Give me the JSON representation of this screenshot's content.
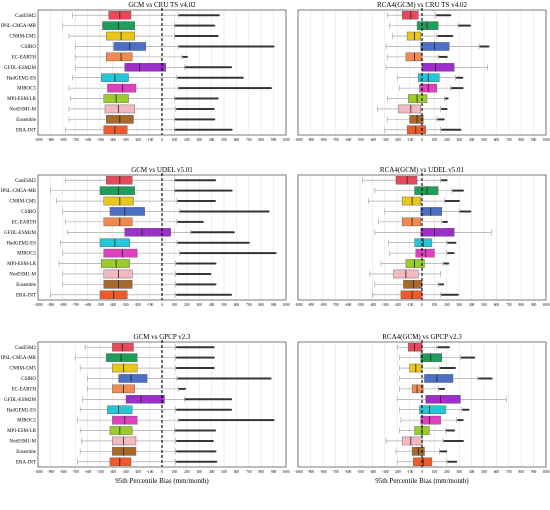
{
  "figure": {
    "xlabel": "95th Percentile Bias (mm/month)",
    "colors": {
      "CanESM2": "#e8495a",
      "IPSL-CM5A-MR": "#1f9e5a",
      "CNRM-CM5": "#e8c81c",
      "CSIRO": "#4a6fc4",
      "EC-EARTH": "#f08a50",
      "GFDL-ESM2M": "#9b2fc8",
      "HadGEM2-ES": "#22c8d8",
      "MIROC5": "#e040c0",
      "MPI-ESM-LR": "#9ccc2c",
      "NorESM1-M": "#f4b8c0",
      "Ensemble": "#a86a2c",
      "ERA-INT": "#f05a2a"
    },
    "whisker_color": "#999999",
    "outlier_color": "#333333",
    "zero_line_style": "dashed"
  },
  "chart_data": [
    {
      "type": "boxplot",
      "title": "GCM vs CRU TS v4.02",
      "categories": [
        "CanESM2",
        "IPSL-CM5A-MR",
        "CNRM-CM5",
        "CSIRO",
        "EC-EARTH",
        "GFDL-ESM2M",
        "HadGEM2-ES",
        "MIROC5",
        "MPI-ESM-LR",
        "NorESM1-M",
        "Ensemble",
        "ERA-INT"
      ],
      "xlim": [
        -1000,
        1000
      ],
      "xticks": [
        -1000,
        -900,
        -800,
        -700,
        -600,
        -500,
        -400,
        -300,
        -200,
        -100,
        0,
        100,
        200,
        300,
        400,
        500,
        600,
        700,
        800,
        900,
        1000
      ],
      "boxes": [
        {
          "q1": -430,
          "median": -340,
          "q3": -250,
          "wlo": -720,
          "whi": 130,
          "outlier_hi": 460
        },
        {
          "q1": -480,
          "median": -350,
          "q3": -220,
          "wlo": -800,
          "whi": 100,
          "outlier_hi": 420
        },
        {
          "q1": -450,
          "median": -330,
          "q3": -220,
          "wlo": -750,
          "whi": 100,
          "outlier_hi": 450
        },
        {
          "q1": -390,
          "median": -260,
          "q3": -130,
          "wlo": -700,
          "whi": 130,
          "outlier_hi": 900
        },
        {
          "q1": -450,
          "median": -330,
          "q3": -240,
          "wlo": -700,
          "whi": 160,
          "outlier_hi": 200
        },
        {
          "q1": -300,
          "median": -180,
          "q3": 30,
          "wlo": -700,
          "whi": 180,
          "outlier_hi": 560
        },
        {
          "q1": -490,
          "median": -380,
          "q3": -270,
          "wlo": -720,
          "whi": 120,
          "outlier_hi": 650
        },
        {
          "q1": -440,
          "median": -320,
          "q3": -210,
          "wlo": -750,
          "whi": 130,
          "outlier_hi": 880
        },
        {
          "q1": -470,
          "median": -370,
          "q3": -270,
          "wlo": -740,
          "whi": 100,
          "outlier_hi": 450
        },
        {
          "q1": -460,
          "median": -350,
          "q3": -220,
          "wlo": -750,
          "whi": 110,
          "outlier_hi": 420
        },
        {
          "q1": -450,
          "median": -340,
          "q3": -230,
          "wlo": -750,
          "whi": 100,
          "outlier_hi": 420
        },
        {
          "q1": -470,
          "median": -380,
          "q3": -280,
          "wlo": -780,
          "whi": 100,
          "outlier_hi": 560
        }
      ]
    },
    {
      "type": "boxplot",
      "title": "RCA4(GCM) vs CRU TS v4.02",
      "categories": [
        "CanESM2",
        "IPSL-CM5A-MR",
        "CNRM-CM5",
        "CSIRO",
        "EC-EARTH",
        "GFDL-ESM2M",
        "HadGEM2-ES",
        "MIROC5",
        "MPI-ESM-LR",
        "NorESM1-M",
        "Ensemble",
        "ERA-INT"
      ],
      "xlim": [
        -1000,
        1000
      ],
      "xticks": [
        -1000,
        -900,
        -800,
        -700,
        -600,
        -500,
        -400,
        -300,
        -200,
        -100,
        0,
        100,
        200,
        300,
        400,
        500,
        600,
        700,
        800,
        900,
        1000
      ],
      "boxes": [
        {
          "q1": -160,
          "median": -90,
          "q3": -30,
          "wlo": -280,
          "whi": 110,
          "outlier_hi": 230
        },
        {
          "q1": -40,
          "median": 40,
          "q3": 130,
          "wlo": -260,
          "whi": 290,
          "outlier_hi": 390
        },
        {
          "q1": -120,
          "median": -60,
          "q3": -10,
          "wlo": -240,
          "whi": 120,
          "outlier_hi": 250
        },
        {
          "q1": -10,
          "median": 100,
          "q3": 220,
          "wlo": -290,
          "whi": 460,
          "outlier_hi": 540
        },
        {
          "q1": -130,
          "median": -60,
          "q3": 0,
          "wlo": -280,
          "whi": 130,
          "outlier_hi": 200
        },
        {
          "q1": 0,
          "median": 110,
          "q3": 260,
          "wlo": -290,
          "whi": 530,
          "outlier_hi": 0
        },
        {
          "q1": -30,
          "median": 50,
          "q3": 140,
          "wlo": -200,
          "whi": 270,
          "outlier_hi": 330
        },
        {
          "q1": -20,
          "median": 50,
          "q3": 120,
          "wlo": -180,
          "whi": 230,
          "outlier_hi": 330
        },
        {
          "q1": -110,
          "median": -40,
          "q3": 40,
          "wlo": -280,
          "whi": 180,
          "outlier_hi": 210
        },
        {
          "q1": -190,
          "median": -90,
          "q3": -10,
          "wlo": -360,
          "whi": 150,
          "outlier_hi": 200
        },
        {
          "q1": -100,
          "median": -40,
          "q3": 10,
          "wlo": -280,
          "whi": 120,
          "outlier_hi": 180
        },
        {
          "q1": -120,
          "median": -50,
          "q3": 30,
          "wlo": -300,
          "whi": 150,
          "outlier_hi": 310
        }
      ]
    },
    {
      "type": "boxplot",
      "title": "GCM vs UDEL v5.01",
      "categories": [
        "CanESM2",
        "IPSL-CM5A-MR",
        "CNRM-CM5",
        "CSIRO",
        "EC-EARTH",
        "GFDL-ESM2M",
        "HadGEM2-ES",
        "MIROC5",
        "MPI-ESM-LR",
        "NorESM1-M",
        "Ensemble",
        "ERA-INT"
      ],
      "xlim": [
        -1000,
        1000
      ],
      "xticks": [
        -1000,
        -900,
        -800,
        -700,
        -600,
        -500,
        -400,
        -300,
        -200,
        -100,
        0,
        100,
        200,
        300,
        400,
        500,
        600,
        700,
        800,
        900,
        1000
      ],
      "boxes": [
        {
          "q1": -450,
          "median": -340,
          "q3": -240,
          "wlo": -780,
          "whi": 100,
          "outlier_hi": 430
        },
        {
          "q1": -500,
          "median": -350,
          "q3": -220,
          "wlo": -900,
          "whi": 100,
          "outlier_hi": 560
        },
        {
          "q1": -470,
          "median": -340,
          "q3": -230,
          "wlo": -850,
          "whi": 120,
          "outlier_hi": 430
        },
        {
          "q1": -420,
          "median": -300,
          "q3": -140,
          "wlo": -800,
          "whi": 140,
          "outlier_hi": 860
        },
        {
          "q1": -470,
          "median": -340,
          "q3": -240,
          "wlo": -780,
          "whi": 120,
          "outlier_hi": 330
        },
        {
          "q1": -300,
          "median": -160,
          "q3": 70,
          "wlo": -760,
          "whi": 230,
          "outlier_hi": 580
        },
        {
          "q1": -500,
          "median": -380,
          "q3": -260,
          "wlo": -820,
          "whi": 120,
          "outlier_hi": 700
        },
        {
          "q1": -470,
          "median": -320,
          "q3": -200,
          "wlo": -800,
          "whi": 140,
          "outlier_hi": 920
        },
        {
          "q1": -490,
          "median": -370,
          "q3": -260,
          "wlo": -830,
          "whi": 110,
          "outlier_hi": 430
        },
        {
          "q1": -470,
          "median": -350,
          "q3": -240,
          "wlo": -800,
          "whi": 110,
          "outlier_hi": 390
        },
        {
          "q1": -470,
          "median": -350,
          "q3": -240,
          "wlo": -800,
          "whi": 110,
          "outlier_hi": 430
        },
        {
          "q1": -500,
          "median": -390,
          "q3": -280,
          "wlo": -900,
          "whi": 110,
          "outlier_hi": 560
        }
      ]
    },
    {
      "type": "boxplot",
      "title": "RCA4(GCM) vs UDEL v5.01",
      "categories": [
        "CanESM2",
        "IPSL-CM5A-MR",
        "CNRM-CM5",
        "CSIRO",
        "EC-EARTH",
        "GFDL-ESM2M",
        "HadGEM2-ES",
        "MIROC5",
        "MPI-ESM-LR",
        "NorESM1-M",
        "Ensemble",
        "ERA-INT"
      ],
      "xlim": [
        -1000,
        1000
      ],
      "xticks": [
        -1000,
        -900,
        -800,
        -700,
        -600,
        -500,
        -400,
        -300,
        -200,
        -100,
        0,
        100,
        200,
        300,
        400,
        500,
        600,
        700,
        800,
        900,
        1000
      ],
      "boxes": [
        {
          "q1": -210,
          "median": -120,
          "q3": -40,
          "wlo": -480,
          "whi": 150,
          "outlier_hi": 200
        },
        {
          "q1": -60,
          "median": 40,
          "q3": 130,
          "wlo": -380,
          "whi": 240,
          "outlier_hi": 330
        },
        {
          "q1": -160,
          "median": -80,
          "q3": -10,
          "wlo": -430,
          "whi": 180,
          "outlier_hi": 300
        },
        {
          "q1": -10,
          "median": 70,
          "q3": 160,
          "wlo": -300,
          "whi": 300,
          "outlier_hi": 390
        },
        {
          "q1": -160,
          "median": -80,
          "q3": -10,
          "wlo": -350,
          "whi": 160,
          "outlier_hi": 200
        },
        {
          "q1": -10,
          "median": 100,
          "q3": 260,
          "wlo": -380,
          "whi": 560,
          "outlier_hi": 0
        },
        {
          "q1": -60,
          "median": 10,
          "q3": 80,
          "wlo": -270,
          "whi": 200,
          "outlier_hi": 270
        },
        {
          "q1": -50,
          "median": 30,
          "q3": 100,
          "wlo": -260,
          "whi": 200,
          "outlier_hi": 260
        },
        {
          "q1": -130,
          "median": -60,
          "q3": 20,
          "wlo": -330,
          "whi": 170,
          "outlier_hi": 210
        },
        {
          "q1": -230,
          "median": -130,
          "q3": -30,
          "wlo": -420,
          "whi": 150,
          "outlier_hi": 160
        },
        {
          "q1": -150,
          "median": -70,
          "q3": 0,
          "wlo": -380,
          "whi": 130,
          "outlier_hi": 170
        },
        {
          "q1": -170,
          "median": -80,
          "q3": 0,
          "wlo": -400,
          "whi": 150,
          "outlier_hi": 290
        }
      ]
    },
    {
      "type": "boxplot",
      "title": "GCM vs GPCP v2.3",
      "categories": [
        "CanESM2",
        "IPSL-CM5A-MR",
        "CNRM-CM5",
        "CSIRO",
        "EC-EARTH",
        "GFDL-ESM2M",
        "HadGEM2-ES",
        "MIROC5",
        "MPI-ESM-LR",
        "NorESM1-M",
        "Ensemble",
        "ERA-INT"
      ],
      "xlim": [
        -1000,
        1000
      ],
      "xticks": [
        -1000,
        -900,
        -800,
        -700,
        -600,
        -500,
        -400,
        -300,
        -200,
        -100,
        0,
        100,
        200,
        300,
        400,
        500,
        600,
        700,
        800,
        900,
        1000
      ],
      "boxes": [
        {
          "q1": -400,
          "median": -320,
          "q3": -230,
          "wlo": -620,
          "whi": 110,
          "outlier_hi": 420
        },
        {
          "q1": -450,
          "median": -330,
          "q3": -200,
          "wlo": -700,
          "whi": 110,
          "outlier_hi": 420
        },
        {
          "q1": -400,
          "median": -310,
          "q3": -200,
          "wlo": -660,
          "whi": 110,
          "outlier_hi": 420
        },
        {
          "q1": -350,
          "median": -250,
          "q3": -120,
          "wlo": -600,
          "whi": 120,
          "outlier_hi": 880
        },
        {
          "q1": -400,
          "median": -310,
          "q3": -220,
          "wlo": -600,
          "whi": 130,
          "outlier_hi": 190
        },
        {
          "q1": -290,
          "median": -170,
          "q3": 20,
          "wlo": -640,
          "whi": 180,
          "outlier_hi": 560
        },
        {
          "q1": -440,
          "median": -350,
          "q3": -240,
          "wlo": -660,
          "whi": 110,
          "outlier_hi": 560
        },
        {
          "q1": -400,
          "median": -300,
          "q3": -200,
          "wlo": -680,
          "whi": 130,
          "outlier_hi": 900
        },
        {
          "q1": -420,
          "median": -340,
          "q3": -240,
          "wlo": -660,
          "whi": 100,
          "outlier_hi": 430
        },
        {
          "q1": -400,
          "median": -310,
          "q3": -210,
          "wlo": -650,
          "whi": 110,
          "outlier_hi": 410
        },
        {
          "q1": -400,
          "median": -310,
          "q3": -210,
          "wlo": -660,
          "whi": 110,
          "outlier_hi": 430
        },
        {
          "q1": -420,
          "median": -340,
          "q3": -250,
          "wlo": -680,
          "whi": 110,
          "outlier_hi": 440
        }
      ]
    },
    {
      "type": "boxplot",
      "title": "RCA4(GCM) vs GPCP v2.3",
      "categories": [
        "CanESM2",
        "IPSL-CM5A-MR",
        "CNRM-CM5",
        "CSIRO",
        "EC-EARTH",
        "GFDL-ESM2M",
        "HadGEM2-ES",
        "MIROC5",
        "MPI-ESM-LR",
        "NorESM1-M",
        "Ensemble",
        "ERA-INT"
      ],
      "xlim": [
        -1000,
        1000
      ],
      "xticks": [
        -1000,
        -900,
        -800,
        -700,
        -600,
        -500,
        -400,
        -300,
        -200,
        -100,
        0,
        100,
        200,
        300,
        400,
        500,
        600,
        700,
        800,
        900,
        1000
      ],
      "boxes": [
        {
          "q1": -110,
          "median": -60,
          "q3": 0,
          "wlo": -200,
          "whi": 120,
          "outlier_hi": 220
        },
        {
          "q1": -10,
          "median": 70,
          "q3": 160,
          "wlo": -180,
          "whi": 310,
          "outlier_hi": 420
        },
        {
          "q1": -100,
          "median": -50,
          "q3": 0,
          "wlo": -180,
          "whi": 140,
          "outlier_hi": 270
        },
        {
          "q1": 20,
          "median": 120,
          "q3": 250,
          "wlo": -180,
          "whi": 450,
          "outlier_hi": 560
        },
        {
          "q1": -80,
          "median": -40,
          "q3": 10,
          "wlo": -180,
          "whi": 130,
          "outlier_hi": 180
        },
        {
          "q1": 30,
          "median": 150,
          "q3": 310,
          "wlo": -200,
          "whi": 680,
          "outlier_hi": 0
        },
        {
          "q1": -20,
          "median": 60,
          "q3": 190,
          "wlo": -180,
          "whi": 320,
          "outlier_hi": 380
        },
        {
          "q1": -10,
          "median": 60,
          "q3": 150,
          "wlo": -170,
          "whi": 280,
          "outlier_hi": 330
        },
        {
          "q1": -60,
          "median": 0,
          "q3": 60,
          "wlo": -180,
          "whi": 190,
          "outlier_hi": 260
        },
        {
          "q1": -160,
          "median": -90,
          "q3": 0,
          "wlo": -290,
          "whi": 170,
          "outlier_hi": 330
        },
        {
          "q1": -80,
          "median": -30,
          "q3": 20,
          "wlo": -210,
          "whi": 140,
          "outlier_hi": 200
        },
        {
          "q1": -70,
          "median": 10,
          "q3": 80,
          "wlo": -200,
          "whi": 200,
          "outlier_hi": 280
        }
      ]
    }
  ]
}
